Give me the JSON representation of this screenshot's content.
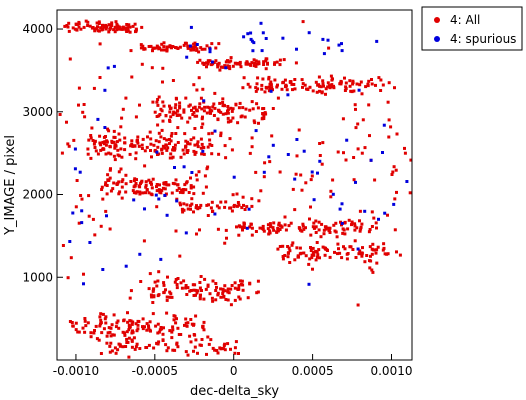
{
  "chart_data": {
    "type": "scatter",
    "xlabel": "dec-delta_sky",
    "ylabel": "Y_IMAGE / pixel",
    "xlim": [
      -0.00112,
      0.00113
    ],
    "ylim": [
      0,
      4230
    ],
    "xticks": [
      {
        "value": -0.001,
        "label": "-0.0010"
      },
      {
        "value": -0.0005,
        "label": "-0.0005"
      },
      {
        "value": 0,
        "label": "0"
      },
      {
        "value": 0.0005,
        "label": "0.0005"
      },
      {
        "value": 0.001,
        "label": "0.0010"
      }
    ],
    "yticks": [
      {
        "value": 1000,
        "label": "1000"
      },
      {
        "value": 2000,
        "label": "2000"
      },
      {
        "value": 3000,
        "label": "3000"
      },
      {
        "value": 4000,
        "label": "4000"
      }
    ],
    "legend": {
      "placement": "top-right, outside plot"
    },
    "series": [
      {
        "name": "4: All",
        "color": "#e00000",
        "bands": [
          {
            "ycenter": 4020,
            "yspread": 90,
            "xstart": -0.00105,
            "xend": -0.00055,
            "count": 90
          },
          {
            "ycenter": 3780,
            "yspread": 80,
            "xstart": -0.0006,
            "xend": -0.0001,
            "count": 60
          },
          {
            "ycenter": 3580,
            "yspread": 90,
            "xstart": -0.0002,
            "xend": 0.0003,
            "count": 70
          },
          {
            "ycenter": 3320,
            "yspread": 140,
            "xstart": 0.0001,
            "xend": 0.00095,
            "count": 110
          },
          {
            "ycenter": 3000,
            "yspread": 220,
            "xstart": -0.0005,
            "xend": 0.0002,
            "count": 120
          },
          {
            "ycenter": 2600,
            "yspread": 260,
            "xstart": -0.0009,
            "xend": -0.0001,
            "count": 150
          },
          {
            "ycenter": 2100,
            "yspread": 180,
            "xstart": -0.0008,
            "xend": -0.0002,
            "count": 100
          },
          {
            "ycenter": 1850,
            "yspread": 80,
            "xstart": -0.0004,
            "xend": 0.0001,
            "count": 40
          },
          {
            "ycenter": 1600,
            "yspread": 150,
            "xstart": 0.0,
            "xend": 0.0009,
            "count": 100
          },
          {
            "ycenter": 1300,
            "yspread": 180,
            "xstart": 0.0003,
            "xend": 0.00095,
            "count": 90
          },
          {
            "ycenter": 850,
            "yspread": 250,
            "xstart": -0.0006,
            "xend": 0.0001,
            "count": 110
          },
          {
            "ycenter": 400,
            "yspread": 250,
            "xstart": -0.001,
            "xend": -0.0002,
            "count": 130
          },
          {
            "ycenter": 150,
            "yspread": 130,
            "xstart": -0.0008,
            "xend": 0.0,
            "count": 70
          },
          {
            "ycenter": 2300,
            "yspread": 2200,
            "xstart": -0.0011,
            "xend": 0.0011,
            "count": 230
          }
        ]
      },
      {
        "name": "4: spurious",
        "color": "#0000dd",
        "bands": [
          {
            "ycenter": 3800,
            "yspread": 350,
            "xstart": -0.0004,
            "xend": 0.0009,
            "count": 28
          },
          {
            "ycenter": 2200,
            "yspread": 1900,
            "xstart": -0.0011,
            "xend": 0.0011,
            "count": 70
          }
        ]
      }
    ]
  }
}
